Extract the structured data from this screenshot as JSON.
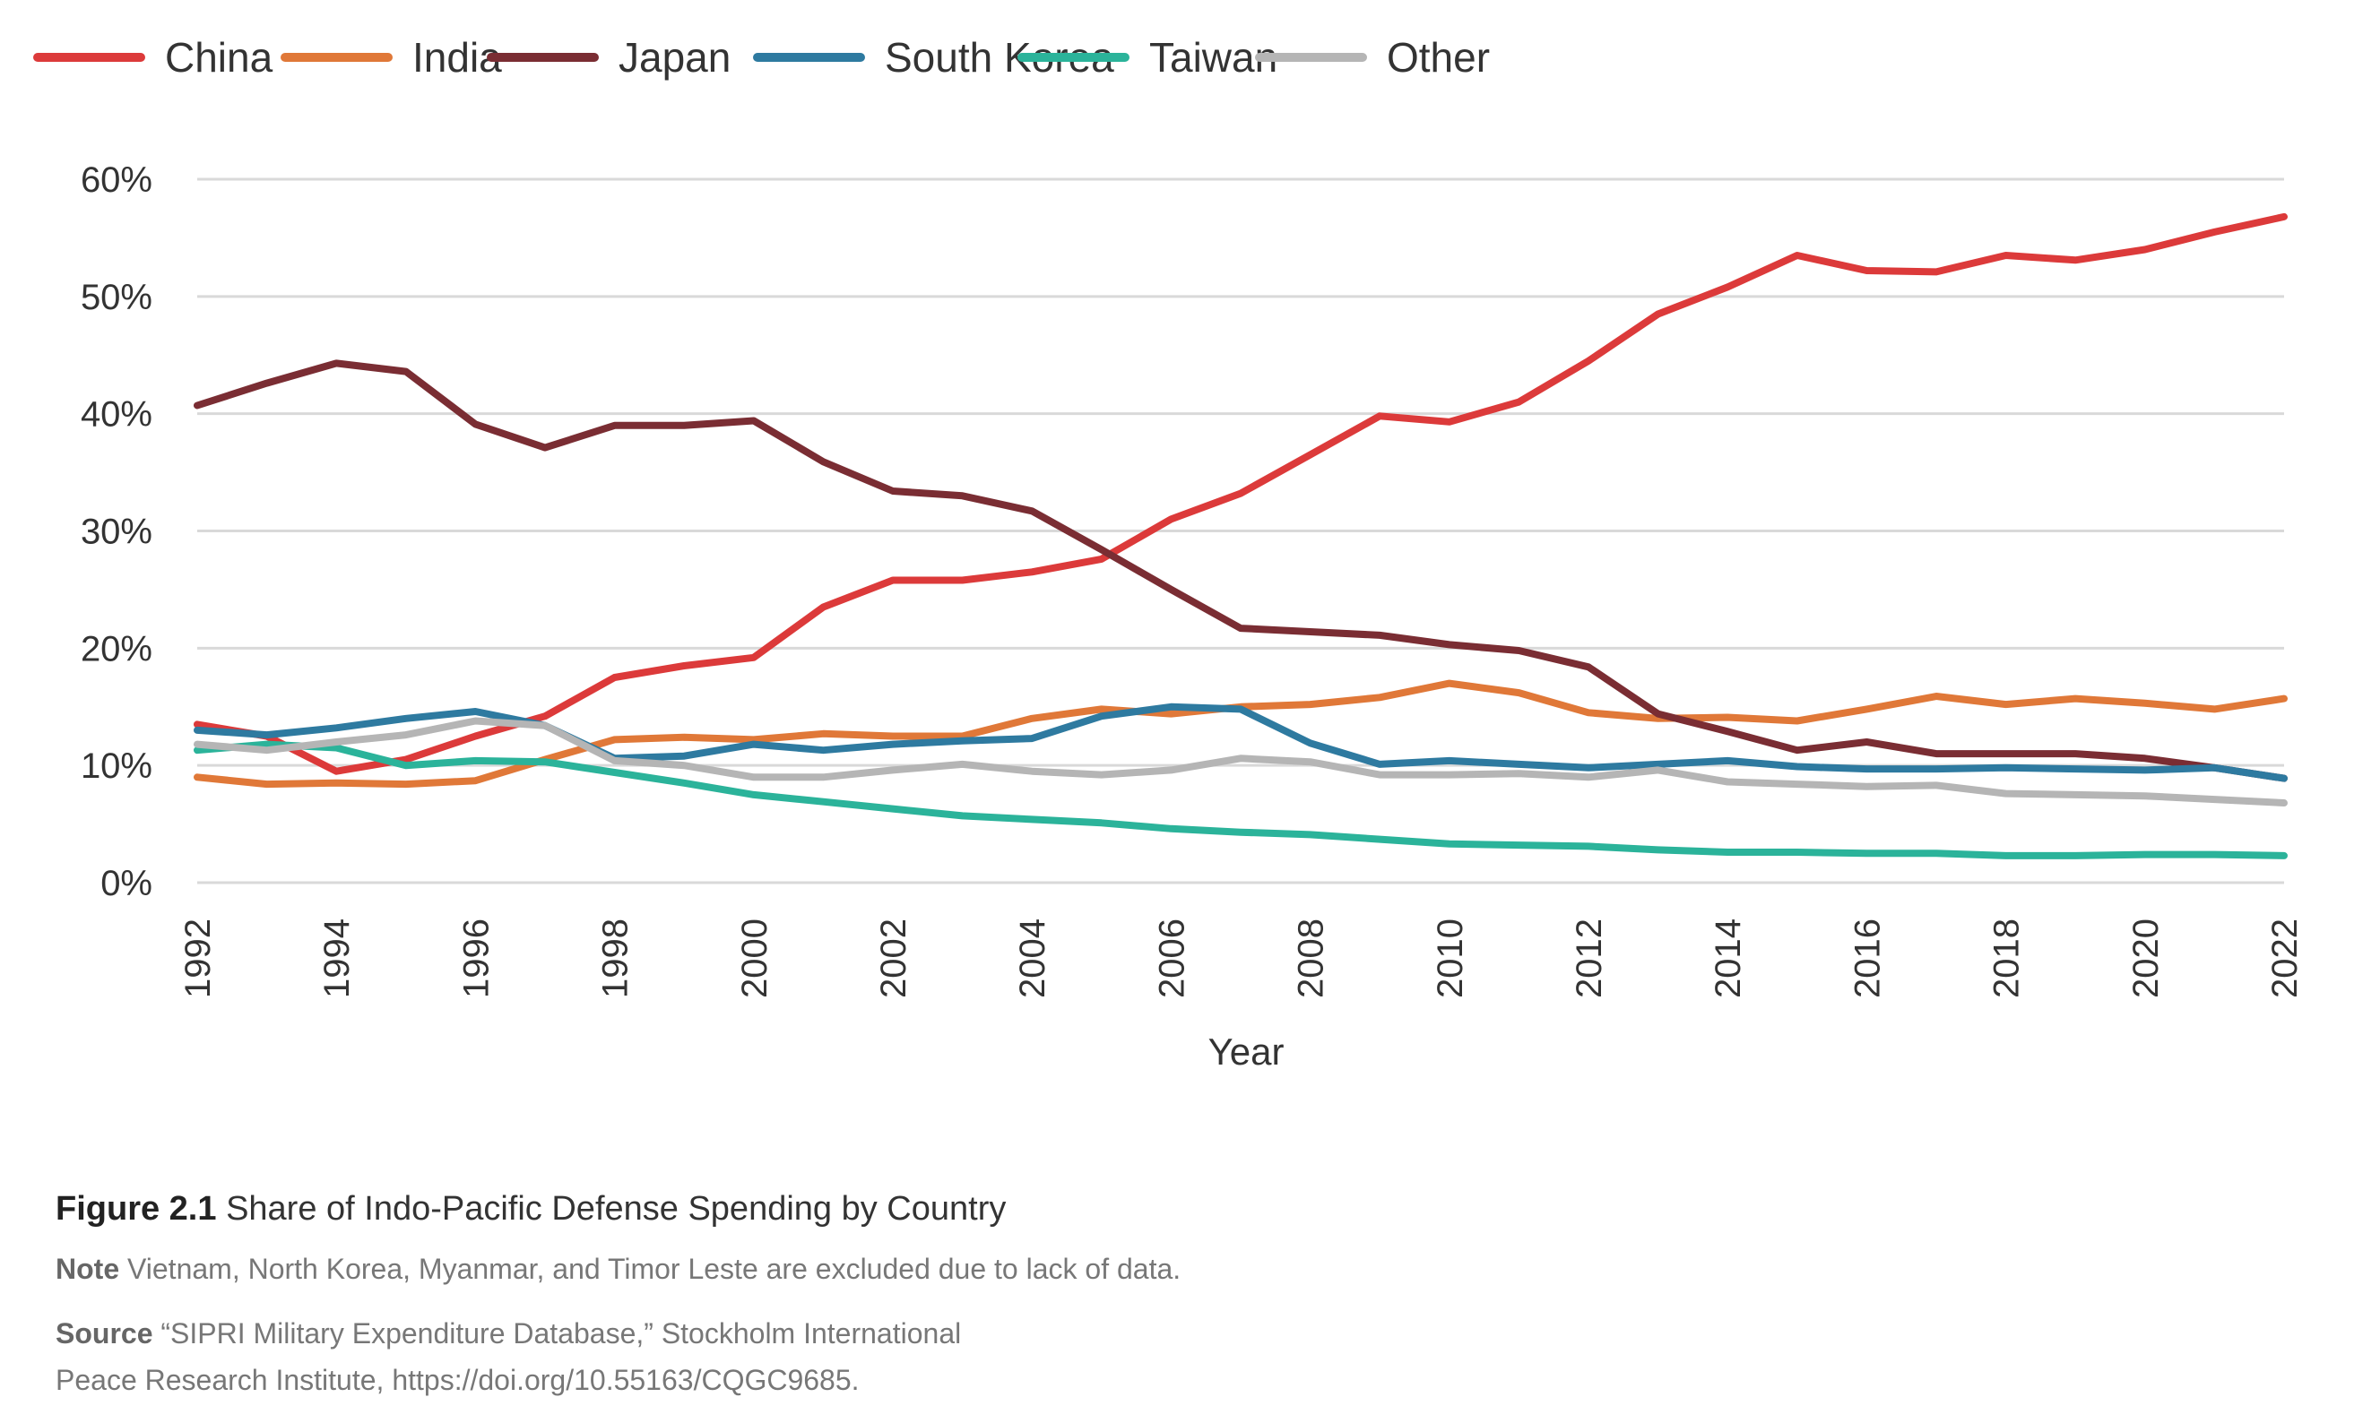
{
  "chart_data": {
    "type": "line",
    "xlabel": "Year",
    "ylabel": "",
    "ylim": [
      0,
      60
    ],
    "y_ticks": [
      "0%",
      "10%",
      "20%",
      "30%",
      "40%",
      "50%",
      "60%"
    ],
    "x_ticks": [
      "1992",
      "1994",
      "1996",
      "1998",
      "2000",
      "2002",
      "2004",
      "2006",
      "2008",
      "2010",
      "2012",
      "2014",
      "2016",
      "2018",
      "2020",
      "2022"
    ],
    "x": [
      1992,
      1993,
      1994,
      1995,
      1996,
      1997,
      1998,
      1999,
      2000,
      2001,
      2002,
      2003,
      2004,
      2005,
      2006,
      2007,
      2008,
      2009,
      2010,
      2011,
      2012,
      2013,
      2014,
      2015,
      2016,
      2017,
      2018,
      2019,
      2020,
      2021,
      2022
    ],
    "grid": true,
    "legend_position": "top-left",
    "series": [
      {
        "name": "China",
        "color": "#dc3a3a",
        "values": [
          13.5,
          12.5,
          9.5,
          10.5,
          12.5,
          14.2,
          17.5,
          18.5,
          19.2,
          23.5,
          25.8,
          25.8,
          26.5,
          27.6,
          31.0,
          33.2,
          36.5,
          39.8,
          39.3,
          41.0,
          44.5,
          48.5,
          50.8,
          53.5,
          52.2,
          52.1,
          53.5,
          53.1,
          54.0,
          55.5,
          56.8
        ]
      },
      {
        "name": "India",
        "color": "#e07838",
        "values": [
          9.0,
          8.4,
          8.5,
          8.4,
          8.7,
          10.5,
          12.2,
          12.4,
          12.2,
          12.7,
          12.5,
          12.5,
          14.0,
          14.8,
          14.4,
          15.0,
          15.2,
          15.8,
          17.0,
          16.2,
          14.5,
          14.0,
          14.1,
          13.8,
          14.8,
          15.9,
          15.2,
          15.7,
          15.3,
          14.8,
          15.7
        ]
      },
      {
        "name": "Japan",
        "color": "#7a2d33",
        "values": [
          40.7,
          42.6,
          44.3,
          43.6,
          39.1,
          37.1,
          39.0,
          39.0,
          39.4,
          35.9,
          33.4,
          33.0,
          31.7,
          28.4,
          25.0,
          21.7,
          21.4,
          21.1,
          20.3,
          19.8,
          18.4,
          14.4,
          12.9,
          11.3,
          12.0,
          11.0,
          11.0,
          11.0,
          10.6,
          9.8,
          8.9
        ]
      },
      {
        "name": "South Korea",
        "color": "#2e7aa0",
        "values": [
          13.0,
          12.6,
          13.2,
          14.0,
          14.6,
          13.4,
          10.6,
          10.8,
          11.8,
          11.3,
          11.8,
          12.1,
          12.3,
          14.2,
          15.0,
          14.8,
          11.9,
          10.1,
          10.4,
          10.1,
          9.8,
          10.1,
          10.4,
          9.9,
          9.7,
          9.7,
          9.8,
          9.7,
          9.6,
          9.8,
          8.9
        ]
      },
      {
        "name": "Taiwan",
        "color": "#2bb39a",
        "values": [
          11.3,
          11.8,
          11.5,
          10.0,
          10.4,
          10.3,
          9.4,
          8.5,
          7.5,
          6.9,
          6.3,
          5.7,
          5.4,
          5.1,
          4.6,
          4.3,
          4.1,
          3.7,
          3.3,
          3.2,
          3.1,
          2.8,
          2.6,
          2.6,
          2.5,
          2.5,
          2.3,
          2.3,
          2.4,
          2.4,
          2.3
        ]
      },
      {
        "name": "Other",
        "color": "#b5b5b5",
        "values": [
          11.8,
          11.3,
          12.0,
          12.6,
          13.8,
          13.4,
          10.4,
          10.0,
          9.0,
          9.0,
          9.6,
          10.1,
          9.5,
          9.2,
          9.6,
          10.6,
          10.3,
          9.2,
          9.2,
          9.3,
          9.0,
          9.6,
          8.6,
          8.4,
          8.2,
          8.3,
          7.6,
          7.5,
          7.4,
          7.1,
          6.8
        ]
      }
    ]
  },
  "caption": {
    "figure_label": "Figure 2.1",
    "title": "Share of Indo-Pacific Defense Spending by Country",
    "note_label": "Note",
    "note": "Vietnam, North Korea, Myanmar, and Timor Leste are excluded due to lack of data.",
    "source_label": "Source",
    "source": "“SIPRI Military Expenditure Database,” Stockholm International Peace Research Institute, https://doi.org/10.55163/CQGC9685."
  }
}
